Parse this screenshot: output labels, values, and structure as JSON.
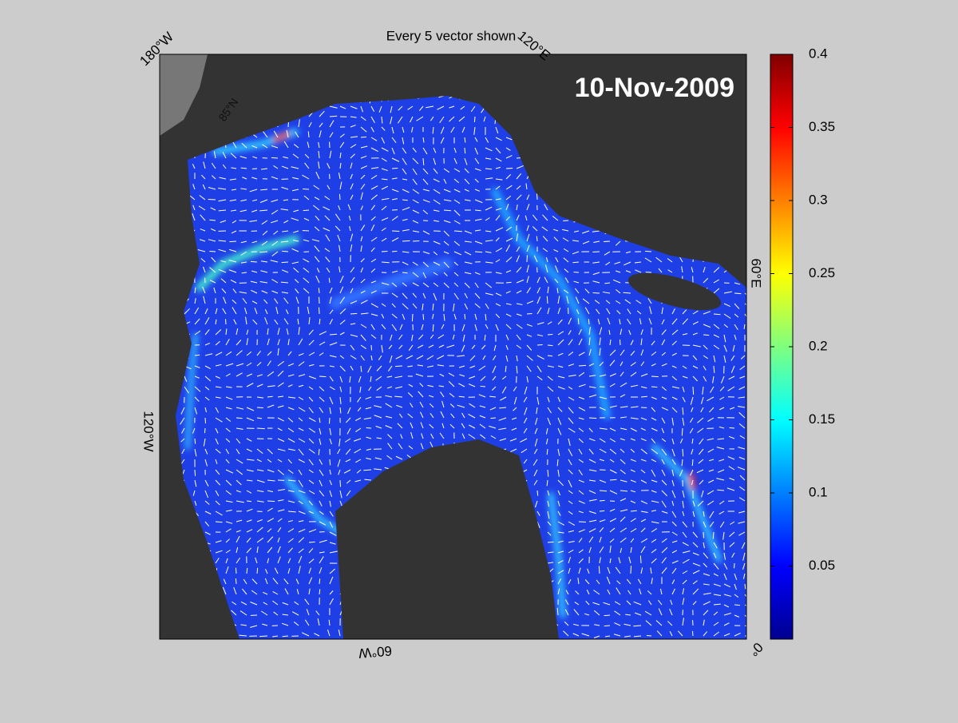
{
  "title": "Every 5 vector shown",
  "date_label": "10-Nov-2009",
  "map_labels": [
    "180°W",
    "120°E",
    "60°E",
    "0°",
    "60°W",
    "120°W",
    "85°N"
  ],
  "colorbar": {
    "lim": [
      0,
      0.4
    ],
    "ticks": [
      0.05,
      0.1,
      0.15,
      0.2,
      0.25,
      0.3,
      0.35,
      0.4
    ]
  }
}
